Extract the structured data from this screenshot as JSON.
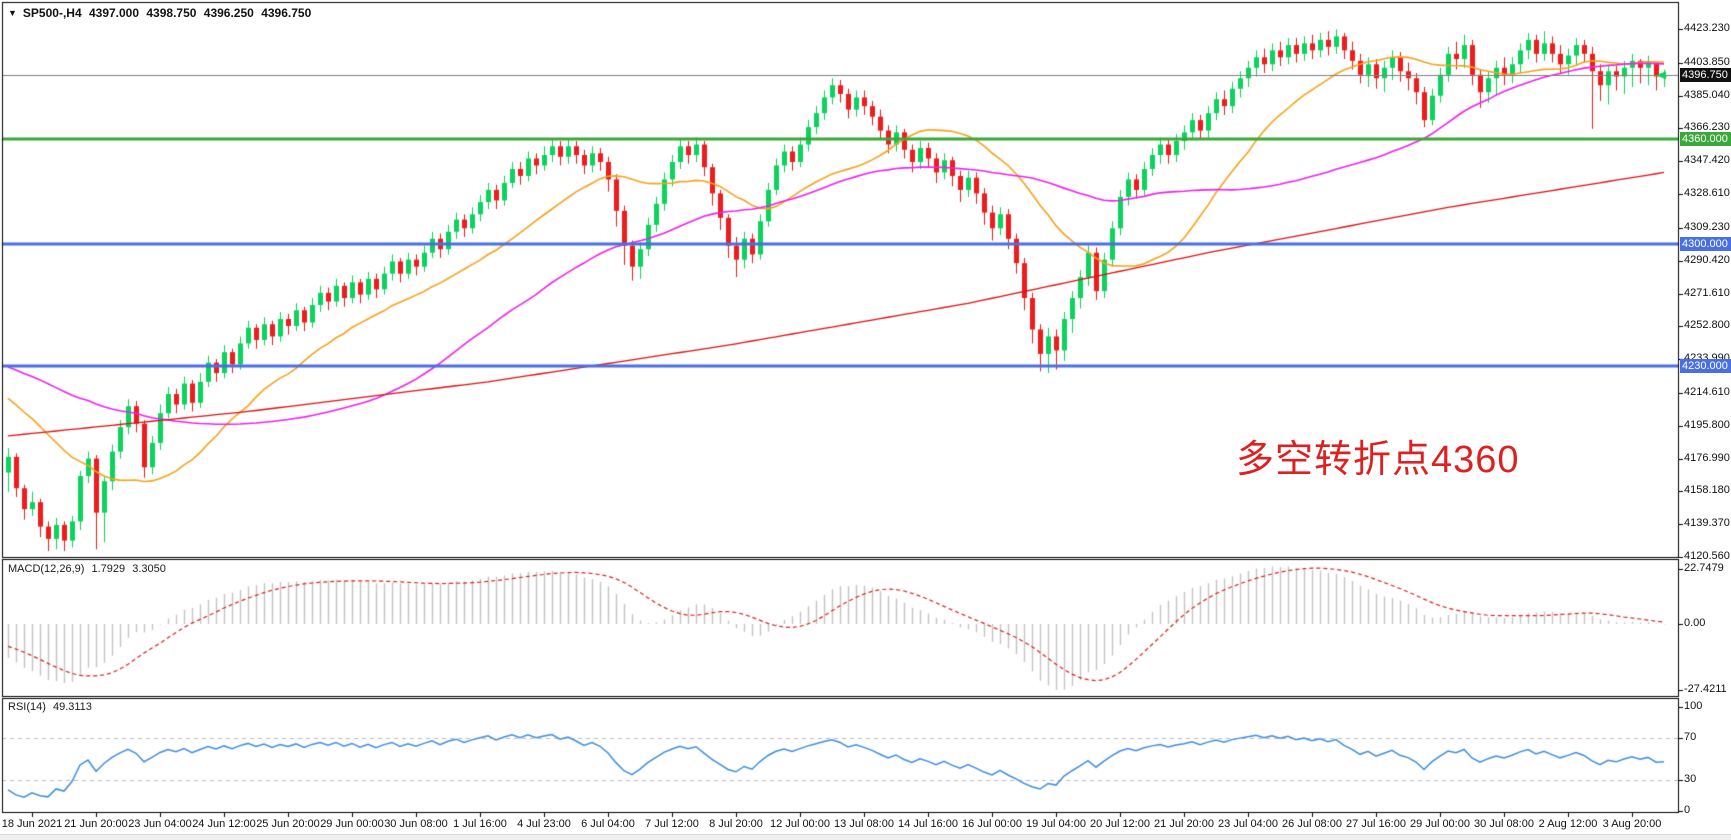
{
  "header": {
    "symbol": "SP500-,H4",
    "open": "4397.000",
    "high": "4398.750",
    "low": "4396.250",
    "close": "4396.750"
  },
  "annotation": {
    "text": "多空转折点4360"
  },
  "colors": {
    "bull": "#0bd35e",
    "bear": "#ee1c1c",
    "ma_fast": "#f5a31d",
    "ma_mid": "#ee22ee",
    "ma_slow": "#dd1111",
    "line_green": "#3aa83a",
    "line_blue": "#4a6fe0",
    "line_current": "#808080",
    "badge_current_bg": "#111111",
    "badge_green_bg": "#3aa83a",
    "badge_blue_bg": "#4a6fe0",
    "macd_hist": "#c4c4c4",
    "macd_signal": "#dd2222",
    "rsi_line": "#3f8ede",
    "rsi_level": "#bbbbbb",
    "border": "#000000",
    "text": "#111111"
  },
  "macd_panel": {
    "name": "MACD(12,26,9)",
    "value_main": "1.7929",
    "value_signal": "3.3050",
    "axis_ticks": [
      "22.7479",
      "0.00",
      "-27.4211"
    ]
  },
  "rsi_panel": {
    "name": "RSI(14)",
    "value": "49.3113",
    "axis_ticks": [
      "100",
      "70",
      "30",
      "0"
    ],
    "levels": [
      70,
      30
    ]
  },
  "chart_data": [
    {
      "type": "candlestick",
      "title": "SP500-,H4",
      "timeframe": "H4",
      "ylim": [
        4120.56,
        4438.0
      ],
      "grid": false,
      "y_axis_ticks": [
        "4423.230",
        "4403.850",
        "4385.040",
        "4366.230",
        "4347.420",
        "4328.610",
        "4309.230",
        "4290.420",
        "4271.610",
        "4252.800",
        "4233.990",
        "4214.610",
        "4195.800",
        "4176.990",
        "4158.180",
        "4139.370",
        "4120.560"
      ],
      "x_labels": [
        "18 Jun 2021",
        "21 Jun 20:00",
        "23 Jun 04:00",
        "24 Jun 12:00",
        "25 Jun 20:00",
        "29 Jun 00:00",
        "30 Jun 08:00",
        "1 Jul 16:00",
        "4 Jul 23:00",
        "6 Jul 04:00",
        "7 Jul 12:00",
        "8 Jul 20:00",
        "12 Jul 00:00",
        "13 Jul 08:00",
        "14 Jul 16:00",
        "16 Jul 00:00",
        "19 Jul 04:00",
        "20 Jul 12:00",
        "21 Jul 20:00",
        "23 Jul 04:00",
        "26 Jul 08:00",
        "27 Jul 16:00",
        "29 Jul 00:00",
        "30 Jul 08:00",
        "2 Aug 12:00",
        "3 Aug 20:00"
      ],
      "bars_per_label": 8,
      "first_label_bar": 3,
      "horizontal_lines": [
        {
          "value": 4396.75,
          "label": "4396.750",
          "style": "current-price",
          "color_key": "line_current",
          "width": 1
        },
        {
          "value": 4360.0,
          "label": "4360.000",
          "style": "level",
          "color_key": "line_green",
          "width": 3
        },
        {
          "value": 4300.0,
          "label": "4300.000",
          "style": "level",
          "color_key": "line_blue",
          "width": 3
        },
        {
          "value": 4230.0,
          "label": "4230.000",
          "style": "level",
          "color_key": "line_blue",
          "width": 3
        }
      ],
      "moving_averages": [
        {
          "period": 20,
          "method": "sma",
          "color_key": "ma_fast"
        },
        {
          "period": 50,
          "method": "sma",
          "color_key": "ma_mid"
        },
        {
          "method": "anchors",
          "color_key": "ma_slow",
          "anchors": [
            [
              0,
              4190
            ],
            [
              30,
              4204
            ],
            [
              60,
              4221
            ],
            [
              90,
              4242
            ],
            [
              120,
              4266
            ],
            [
              150,
              4295
            ],
            [
              180,
              4321
            ],
            [
              207,
              4341
            ]
          ]
        }
      ],
      "first_open": 4169,
      "pre_closes": [
        4238,
        4242,
        4246,
        4240,
        4236,
        4244,
        4248,
        4243,
        4247,
        4250,
        4246,
        4241,
        4245,
        4249,
        4244,
        4240,
        4236,
        4240,
        4244,
        4238,
        4242,
        4246,
        4242,
        4238,
        4234,
        4238,
        4242,
        4237,
        4233,
        4236,
        4235,
        4233,
        4230,
        4228,
        4226,
        4228,
        4225,
        4222,
        4220,
        4218,
        4220,
        4217,
        4214,
        4212,
        4215,
        4205,
        4195,
        4188,
        4180,
        4175
      ],
      "bars_hlc": [
        [
          4183,
          4158,
          4178
        ],
        [
          4180,
          4155,
          4160
        ],
        [
          4162,
          4142,
          4148
        ],
        [
          4158,
          4144,
          4152
        ],
        [
          4154,
          4132,
          4138
        ],
        [
          4141,
          4124,
          4131
        ],
        [
          4143,
          4125,
          4139
        ],
        [
          4141,
          4124,
          4130
        ],
        [
          4144,
          4126,
          4141
        ],
        [
          4170,
          4136,
          4167
        ],
        [
          4181,
          4163,
          4177
        ],
        [
          4179,
          4125,
          4146
        ],
        [
          4167,
          4129,
          4164
        ],
        [
          4185,
          4159,
          4181
        ],
        [
          4199,
          4177,
          4195
        ],
        [
          4211,
          4191,
          4207
        ],
        [
          4210,
          4192,
          4197
        ],
        [
          4199,
          4166,
          4172
        ],
        [
          4190,
          4168,
          4186
        ],
        [
          4208,
          4182,
          4203
        ],
        [
          4218,
          4200,
          4214
        ],
        [
          4217,
          4203,
          4208
        ],
        [
          4224,
          4205,
          4220
        ],
        [
          4222,
          4204,
          4209
        ],
        [
          4226,
          4206,
          4221
        ],
        [
          4236,
          4218,
          4232
        ],
        [
          4234,
          4221,
          4226
        ],
        [
          4242,
          4223,
          4238
        ],
        [
          4240,
          4226,
          4231
        ],
        [
          4247,
          4228,
          4243
        ],
        [
          4256,
          4240,
          4252
        ],
        [
          4254,
          4240,
          4245
        ],
        [
          4258,
          4242,
          4254
        ],
        [
          4256,
          4242,
          4247
        ],
        [
          4261,
          4244,
          4257
        ],
        [
          4260,
          4248,
          4253
        ],
        [
          4266,
          4250,
          4262
        ],
        [
          4264,
          4250,
          4255
        ],
        [
          4269,
          4252,
          4265
        ],
        [
          4276,
          4261,
          4272
        ],
        [
          4275,
          4262,
          4267
        ],
        [
          4280,
          4264,
          4276
        ],
        [
          4278,
          4264,
          4269
        ],
        [
          4282,
          4266,
          4278
        ],
        [
          4280,
          4266,
          4271
        ],
        [
          4284,
          4268,
          4280
        ],
        [
          4283,
          4269,
          4274
        ],
        [
          4287,
          4271,
          4283
        ],
        [
          4294,
          4279,
          4290
        ],
        [
          4292,
          4278,
          4283
        ],
        [
          4295,
          4280,
          4291
        ],
        [
          4294,
          4282,
          4287
        ],
        [
          4299,
          4284,
          4295
        ],
        [
          4307,
          4292,
          4303
        ],
        [
          4306,
          4292,
          4297
        ],
        [
          4311,
          4294,
          4307
        ],
        [
          4318,
          4303,
          4314
        ],
        [
          4317,
          4304,
          4309
        ],
        [
          4321,
          4306,
          4317
        ],
        [
          4328,
          4313,
          4324
        ],
        [
          4335,
          4320,
          4331
        ],
        [
          4334,
          4320,
          4325
        ],
        [
          4339,
          4322,
          4335
        ],
        [
          4347,
          4332,
          4343
        ],
        [
          4347,
          4334,
          4339
        ],
        [
          4353,
          4336,
          4349
        ],
        [
          4352,
          4340,
          4345
        ],
        [
          4356,
          4342,
          4351
        ],
        [
          4360,
          4347,
          4356
        ],
        [
          4359,
          4345,
          4350
        ],
        [
          4360,
          4346,
          4356
        ],
        [
          4359,
          4346,
          4351
        ],
        [
          4354,
          4340,
          4345
        ],
        [
          4356,
          4341,
          4352
        ],
        [
          4355,
          4342,
          4347
        ],
        [
          4350,
          4330,
          4337
        ],
        [
          4340,
          4310,
          4319
        ],
        [
          4322,
          4288,
          4299
        ],
        [
          4302,
          4279,
          4287
        ],
        [
          4301,
          4280,
          4297
        ],
        [
          4315,
          4293,
          4311
        ],
        [
          4327,
          4307,
          4323
        ],
        [
          4341,
          4319,
          4337
        ],
        [
          4351,
          4333,
          4347
        ],
        [
          4360,
          4343,
          4356
        ],
        [
          4359,
          4346,
          4351
        ],
        [
          4361,
          4347,
          4357
        ],
        [
          4359,
          4339,
          4344
        ],
        [
          4346,
          4322,
          4329
        ],
        [
          4331,
          4308,
          4315
        ],
        [
          4317,
          4292,
          4299
        ],
        [
          4304,
          4281,
          4291
        ],
        [
          4307,
          4286,
          4303
        ],
        [
          4306,
          4289,
          4294
        ],
        [
          4317,
          4291,
          4313
        ],
        [
          4335,
          4310,
          4331
        ],
        [
          4349,
          4328,
          4345
        ],
        [
          4357,
          4341,
          4353
        ],
        [
          4356,
          4342,
          4347
        ],
        [
          4361,
          4344,
          4357
        ],
        [
          4371,
          4353,
          4367
        ],
        [
          4379,
          4363,
          4375
        ],
        [
          4388,
          4371,
          4384
        ],
        [
          4395,
          4380,
          4391
        ],
        [
          4394,
          4381,
          4386
        ],
        [
          4389,
          4372,
          4377
        ],
        [
          4388,
          4373,
          4384
        ],
        [
          4388,
          4374,
          4379
        ],
        [
          4382,
          4368,
          4373
        ],
        [
          4377,
          4360,
          4365
        ],
        [
          4368,
          4352,
          4357
        ],
        [
          4368,
          4353,
          4364
        ],
        [
          4366,
          4349,
          4354
        ],
        [
          4357,
          4341,
          4347
        ],
        [
          4359,
          4343,
          4355
        ],
        [
          4358,
          4344,
          4349
        ],
        [
          4352,
          4335,
          4341
        ],
        [
          4352,
          4337,
          4348
        ],
        [
          4350,
          4333,
          4339
        ],
        [
          4342,
          4324,
          4331
        ],
        [
          4342,
          4327,
          4338
        ],
        [
          4341,
          4323,
          4329
        ],
        [
          4332,
          4311,
          4318
        ],
        [
          4322,
          4302,
          4309
        ],
        [
          4321,
          4305,
          4317
        ],
        [
          4320,
          4297,
          4303
        ],
        [
          4306,
          4283,
          4289
        ],
        [
          4292,
          4262,
          4269
        ],
        [
          4272,
          4243,
          4251
        ],
        [
          4254,
          4227,
          4237
        ],
        [
          4252,
          4226,
          4247
        ],
        [
          4251,
          4228,
          4239
        ],
        [
          4261,
          4233,
          4257
        ],
        [
          4273,
          4249,
          4269
        ],
        [
          4285,
          4263,
          4281
        ],
        [
          4299,
          4276,
          4295
        ],
        [
          4298,
          4268,
          4273
        ],
        [
          4295,
          4269,
          4291
        ],
        [
          4313,
          4287,
          4309
        ],
        [
          4331,
          4305,
          4327
        ],
        [
          4341,
          4322,
          4337
        ],
        [
          4340,
          4326,
          4331
        ],
        [
          4347,
          4328,
          4343
        ],
        [
          4355,
          4339,
          4351
        ],
        [
          4361,
          4346,
          4357
        ],
        [
          4360,
          4346,
          4351
        ],
        [
          4363,
          4347,
          4359
        ],
        [
          4368,
          4354,
          4364
        ],
        [
          4375,
          4360,
          4371
        ],
        [
          4374,
          4360,
          4365
        ],
        [
          4379,
          4361,
          4375
        ],
        [
          4387,
          4371,
          4383
        ],
        [
          4388,
          4374,
          4379
        ],
        [
          4393,
          4375,
          4389
        ],
        [
          4399,
          4384,
          4395
        ],
        [
          4405,
          4390,
          4401
        ],
        [
          4411,
          4396,
          4407
        ],
        [
          4412,
          4398,
          4403
        ],
        [
          4415,
          4399,
          4411
        ],
        [
          4416,
          4402,
          4407
        ],
        [
          4418,
          4403,
          4414
        ],
        [
          4418,
          4404,
          4409
        ],
        [
          4419,
          4405,
          4415
        ],
        [
          4420,
          4406,
          4411
        ],
        [
          4421,
          4407,
          4417
        ],
        [
          4422,
          4408,
          4413
        ],
        [
          4423,
          4409,
          4419
        ],
        [
          4421,
          4406,
          4411
        ],
        [
          4416,
          4400,
          4405
        ],
        [
          4409,
          4392,
          4397
        ],
        [
          4407,
          4390,
          4403
        ],
        [
          4406,
          4389,
          4395
        ],
        [
          4405,
          4387,
          4401
        ],
        [
          4411,
          4394,
          4407
        ],
        [
          4410,
          4393,
          4399
        ],
        [
          4404,
          4388,
          4395
        ],
        [
          4398,
          4380,
          4387
        ],
        [
          4390,
          4367,
          4371
        ],
        [
          4389,
          4368,
          4385
        ],
        [
          4401,
          4381,
          4397
        ],
        [
          4413,
          4393,
          4409
        ],
        [
          4416,
          4400,
          4406
        ],
        [
          4420,
          4401,
          4414
        ],
        [
          4417,
          4391,
          4397
        ],
        [
          4400,
          4378,
          4387
        ],
        [
          4399,
          4381,
          4395
        ],
        [
          4405,
          4385,
          4401
        ],
        [
          4407,
          4391,
          4397
        ],
        [
          4407,
          4392,
          4403
        ],
        [
          4415,
          4398,
          4411
        ],
        [
          4421,
          4406,
          4417
        ],
        [
          4420,
          4404,
          4409
        ],
        [
          4422,
          4405,
          4415
        ],
        [
          4419,
          4404,
          4409
        ],
        [
          4414,
          4398,
          4403
        ],
        [
          4412,
          4397,
          4408
        ],
        [
          4418,
          4402,
          4414
        ],
        [
          4417,
          4404,
          4409
        ],
        [
          4413,
          4366,
          4399
        ],
        [
          4403,
          4382,
          4391
        ],
        [
          4402,
          4380,
          4399
        ],
        [
          4402,
          4388,
          4396
        ],
        [
          4405,
          4386,
          4401
        ],
        [
          4409,
          4390,
          4405
        ],
        [
          4406,
          4392,
          4401
        ],
        [
          4408,
          4391,
          4404
        ],
        [
          4402,
          4388,
          4396
        ],
        [
          4400,
          4390,
          4396.75
        ]
      ]
    },
    {
      "type": "macd_histogram",
      "params": [
        12,
        26,
        9
      ],
      "source": "computed from candlestick closes",
      "current_macd": 1.7929,
      "current_signal": 3.305,
      "axis_range": [
        22.7479,
        -27.4211
      ]
    },
    {
      "type": "rsi",
      "period": 14,
      "source": "computed from candlestick closes",
      "current": 49.3113,
      "levels": [
        70,
        30
      ],
      "axis_range": [
        0,
        100
      ]
    }
  ]
}
